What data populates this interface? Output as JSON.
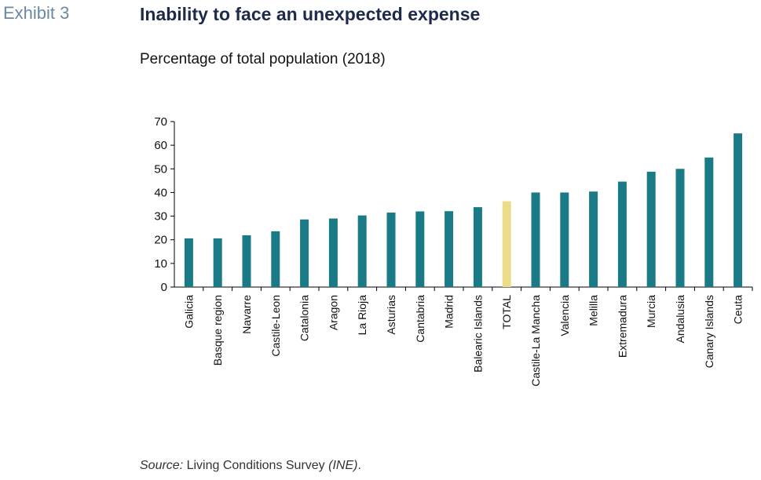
{
  "header": {
    "exhibit": "Exhibit 3",
    "title": "Inability to face an unexpected expense",
    "subtitle": "Percentage of total population (2018)"
  },
  "footer": {
    "source_label": "Source:",
    "source_text": " Living Conditions Survey ",
    "source_org": "(INE)",
    "source_end": "."
  },
  "colors": {
    "bar": "#1a7a85",
    "highlight": "#ecdc8a",
    "axis": "#000000"
  },
  "chart_data": {
    "type": "bar",
    "title": "Inability to face an unexpected expense",
    "subtitle": "Percentage of total population (2018)",
    "xlabel": "",
    "ylabel": "",
    "ylim": [
      0,
      70
    ],
    "yticks": [
      0,
      10,
      20,
      30,
      40,
      50,
      60,
      70
    ],
    "grid": false,
    "highlight_category": "TOTAL",
    "categories": [
      "Galicia",
      "Basque region",
      "Navarre",
      "Castile-Leon",
      "Catalonia",
      "Aragon",
      "La Rioja",
      "Asturias",
      "Cantabria",
      "Madrid",
      "Balearic Islands",
      "TOTAL",
      "Castile-La Mancha",
      "Valencia",
      "Melilla",
      "Extremadura",
      "Murcia",
      "Andalusia",
      "Canary Islands",
      "Ceuta"
    ],
    "values": [
      20.6,
      20.6,
      21.9,
      23.6,
      28.6,
      29.0,
      30.3,
      31.5,
      32.0,
      32.1,
      33.8,
      36.3,
      40.0,
      40.0,
      40.4,
      44.6,
      48.8,
      50.0,
      54.8,
      65.0
    ]
  }
}
